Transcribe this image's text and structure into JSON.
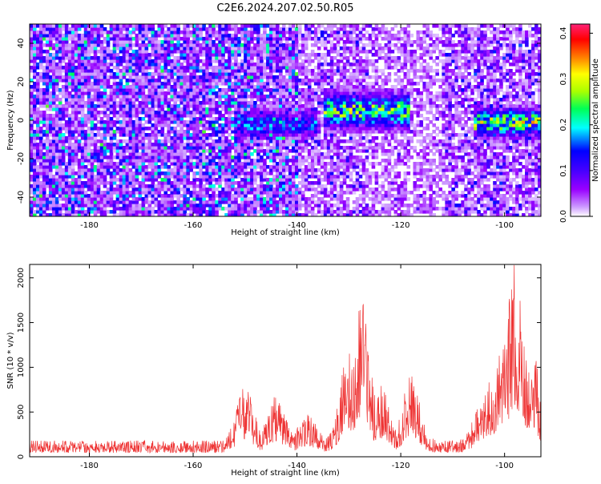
{
  "page_title": "C2E6.2024.207.02.50.R05",
  "chart_data": [
    {
      "type": "heatmap",
      "name": "spectrogram",
      "title": "C2E6.2024.207.02.50.R05",
      "xlabel": "Height of straight line (km)",
      "ylabel": "Frequency (Hz)",
      "xlim": [
        -191.5,
        -93
      ],
      "ylim": [
        -50,
        50
      ],
      "x_ticks": [
        -180,
        -160,
        -140,
        -120,
        -100
      ],
      "y_ticks": [
        -40,
        -20,
        0,
        20,
        40
      ],
      "grid": false,
      "colorbar": {
        "label": "Normalized spectral amplitude",
        "range": [
          0,
          0.42
        ],
        "ticks": [
          0,
          0.1,
          0.2,
          0.3,
          0.4
        ],
        "tick_labels": [
          "0.0",
          "0.1",
          "0.2",
          "0.3",
          "0.4"
        ],
        "colormap": [
          "#ffffff",
          "#cc99ff",
          "#9900ff",
          "#4400ff",
          "#0000ff",
          "#00ffff",
          "#00ff55",
          "#aaff00",
          "#ffff00",
          "#ff8800",
          "#ff0000",
          "#ff2277"
        ]
      },
      "band": {
        "segments": [
          {
            "x": [
              -152,
              -136
            ],
            "y_center": -2,
            "half_width": 8,
            "max": 0.18
          },
          {
            "x": [
              -135,
              -118
            ],
            "y_center": 5,
            "half_width": 10,
            "max": 0.3
          },
          {
            "x": [
              -106,
              -93
            ],
            "y_center": -1,
            "half_width": 8,
            "max": 0.32
          }
        ]
      }
    },
    {
      "type": "line",
      "name": "snr",
      "xlabel": "Height of straight line (km)",
      "ylabel": "SNR (10 * v/v)",
      "xlim": [
        -191.5,
        -93
      ],
      "ylim": [
        0,
        2150
      ],
      "x_ticks": [
        -180,
        -160,
        -140,
        -120,
        -100
      ],
      "y_ticks": [
        0,
        500,
        1000,
        1500,
        2000
      ],
      "grid": false,
      "color": "#ee3333",
      "baseline": 180,
      "peaks": [
        {
          "x": -150,
          "value": 780
        },
        {
          "x": -144,
          "value": 680
        },
        {
          "x": -138,
          "value": 480
        },
        {
          "x": -130,
          "value": 1200
        },
        {
          "x": -127.5,
          "value": 1730
        },
        {
          "x": -124,
          "value": 820
        },
        {
          "x": -118,
          "value": 900
        },
        {
          "x": -104,
          "value": 780
        },
        {
          "x": -102,
          "value": 1000
        },
        {
          "x": -100,
          "value": 1450
        },
        {
          "x": -98,
          "value": 2150
        },
        {
          "x": -95,
          "value": 1300
        }
      ]
    }
  ]
}
